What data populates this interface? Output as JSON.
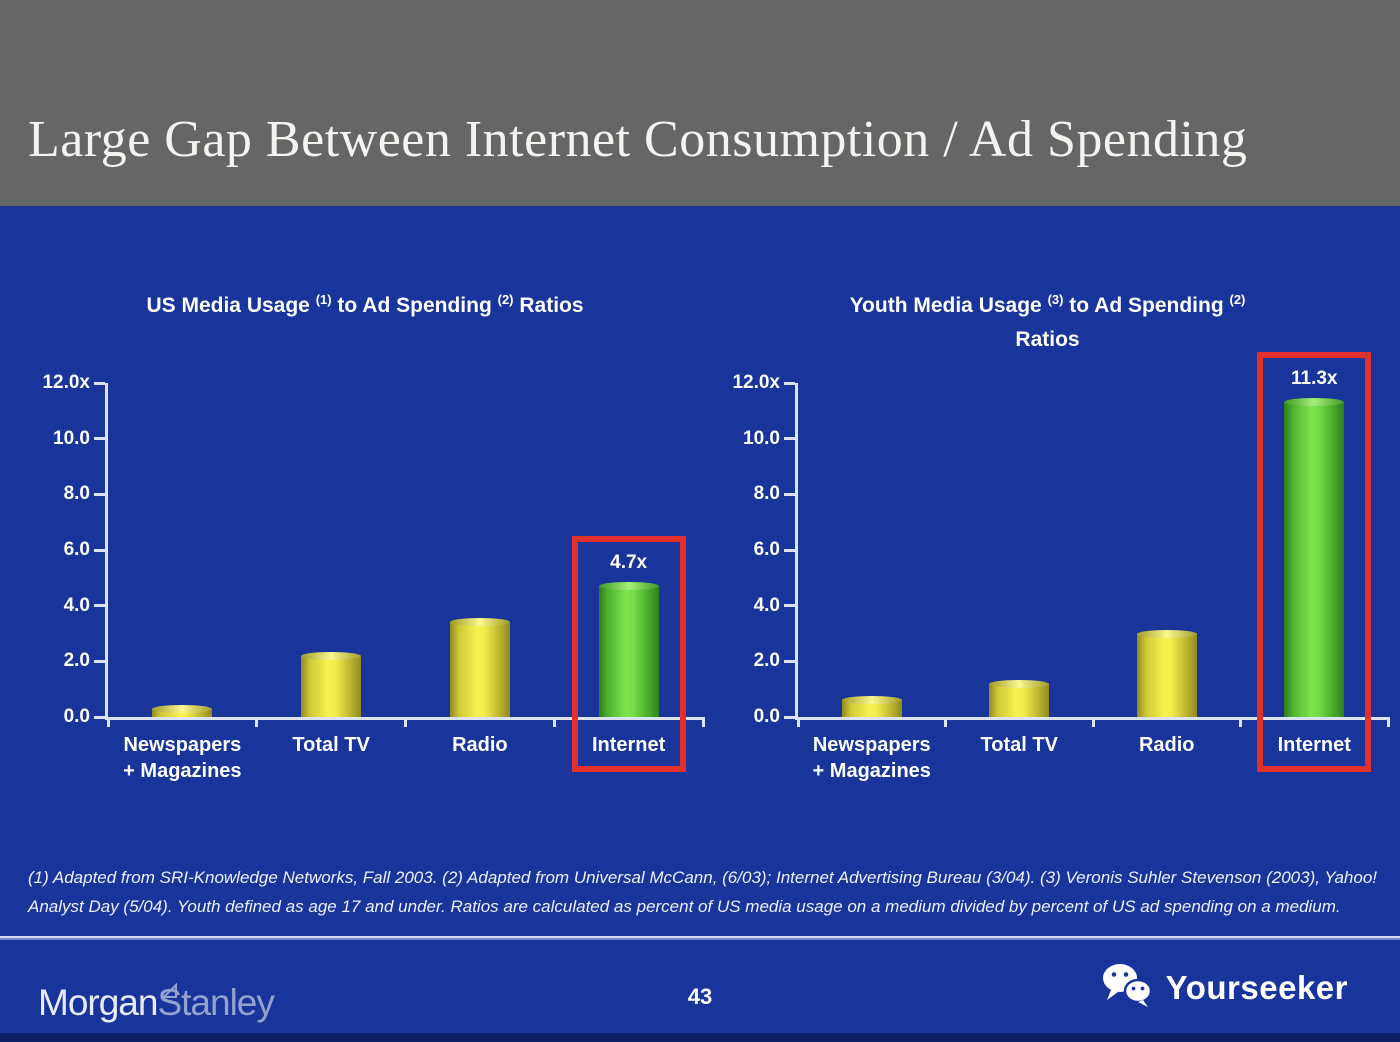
{
  "slide": {
    "title": "Large Gap Between Internet Consumption / Ad Spending",
    "page_number": "43",
    "footnote": "(1) Adapted from SRI-Knowledge Networks, Fall 2003.  (2) Adapted from Universal McCann, (6/03); Internet Advertising Bureau (3/04). (3) Veronis Suhler Stevenson (2003), Yahoo! Analyst Day (5/04).  Youth defined as age 17 and under.  Ratios are calculated as percent of US media usage on a medium divided by percent of US ad spending on a medium.",
    "brand": {
      "morgan": "Morgan",
      "stanley": "Stanley"
    },
    "watermark": "Yourseeker"
  },
  "colors": {
    "background_blue": "#19349a",
    "header_gray": "#666666",
    "highlight_red": "#e2312a",
    "bar_yellow": "#f7f152",
    "bar_green": "#74dc48",
    "axis_white": "#dbe3f5",
    "bottom_strip_navy": "#0d2063"
  },
  "chart_data": [
    {
      "type": "bar",
      "title": "US Media Usage (1) to Ad Spending (2) Ratios",
      "title_segments": [
        {
          "text": "US Media Usage "
        },
        {
          "text": "(1)",
          "sup": true
        },
        {
          "text": " to Ad Spending "
        },
        {
          "text": "(2)",
          "sup": true
        },
        {
          "text": " Ratios"
        }
      ],
      "categories": [
        "Newspapers\n+ Magazines",
        "Total TV",
        "Radio",
        "Internet"
      ],
      "values": [
        0.3,
        2.2,
        3.4,
        4.7
      ],
      "bar_colors": [
        "yellow",
        "yellow",
        "yellow",
        "green"
      ],
      "highlight_index": 3,
      "highlight_label": "4.7x",
      "xlabel": "",
      "ylabel": "",
      "ylim": [
        0,
        12
      ],
      "grid": false,
      "legend": null,
      "yticks": [
        {
          "value": 12,
          "label": "12.0x"
        },
        {
          "value": 10,
          "label": "10.0"
        },
        {
          "value": 8,
          "label": "8.0"
        },
        {
          "value": 6,
          "label": "6.0"
        },
        {
          "value": 4,
          "label": "4.0"
        },
        {
          "value": 2,
          "label": "2.0"
        },
        {
          "value": 0,
          "label": "0.0"
        }
      ]
    },
    {
      "type": "bar",
      "title": "Youth Media Usage (3) to Ad Spending (2) Ratios",
      "title_segments": [
        {
          "text": "Youth Media Usage "
        },
        {
          "text": "(3)",
          "sup": true
        },
        {
          "text": " to Ad Spending "
        },
        {
          "text": "(2)",
          "sup": true
        },
        {
          "break": true
        },
        {
          "text": "Ratios"
        }
      ],
      "categories": [
        "Newspapers\n+ Magazines",
        "Total TV",
        "Radio",
        "Internet"
      ],
      "values": [
        0.6,
        1.2,
        3.0,
        11.3
      ],
      "bar_colors": [
        "yellow",
        "yellow",
        "yellow",
        "green"
      ],
      "highlight_index": 3,
      "highlight_label": "11.3x",
      "xlabel": "",
      "ylabel": "",
      "ylim": [
        0,
        12
      ],
      "grid": false,
      "legend": null,
      "yticks": [
        {
          "value": 12,
          "label": "12.0x"
        },
        {
          "value": 10,
          "label": "10.0"
        },
        {
          "value": 8,
          "label": "8.0"
        },
        {
          "value": 6,
          "label": "6.0"
        },
        {
          "value": 4,
          "label": "4.0"
        },
        {
          "value": 2,
          "label": "2.0"
        },
        {
          "value": 0,
          "label": "0.0"
        }
      ]
    }
  ]
}
